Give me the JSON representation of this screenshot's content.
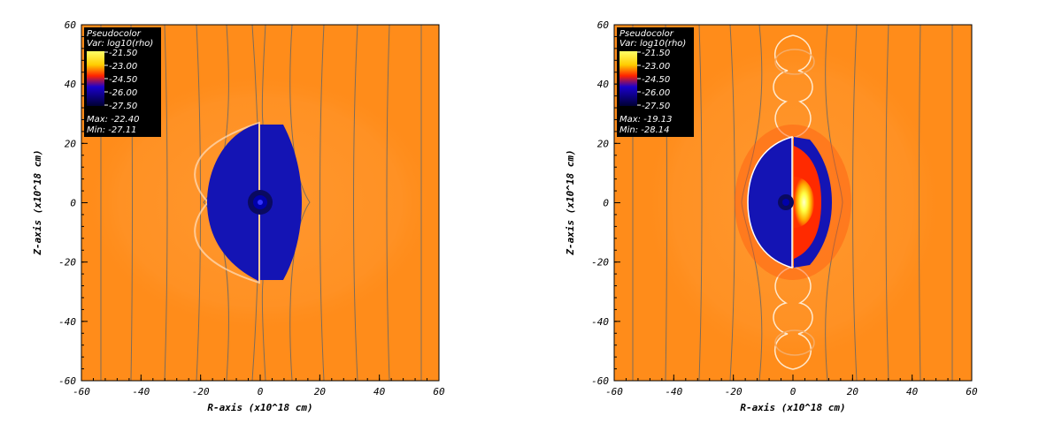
{
  "chart_data": [
    {
      "type": "heatmap",
      "xlabel": "R-axis (x10^18 cm)",
      "ylabel": "Z-axis (x10^18 cm)",
      "xlim": [
        -60,
        60
      ],
      "ylim": [
        -60,
        60
      ],
      "x_ticks": [
        -60,
        -40,
        -20,
        0,
        20,
        40,
        60
      ],
      "y_ticks": [
        -60,
        -40,
        -20,
        0,
        20,
        40,
        60
      ],
      "legend": {
        "placement": "top-left",
        "title": "Pseudocolor",
        "var": "Var: log10(rho)",
        "levels": [
          "-21.50",
          "-23.00",
          "-24.50",
          "-26.00",
          "-27.50"
        ],
        "max": "Max: -22.40",
        "min": "Min: -27.11"
      },
      "colormap": [
        "#ffff66",
        "#ffcc00",
        "#ff2200",
        "#0000cc",
        "#000033"
      ],
      "background_color": "#ff8c1a",
      "features": {
        "cavity_color": "#1414b4",
        "field_line_color": "#555555"
      }
    },
    {
      "type": "heatmap",
      "xlabel": "R-axis (x10^18 cm)",
      "ylabel": "Z-axis (x10^18 cm)",
      "xlim": [
        -60,
        60
      ],
      "ylim": [
        -60,
        60
      ],
      "x_ticks": [
        -60,
        -40,
        -20,
        0,
        20,
        40,
        60
      ],
      "y_ticks": [
        -60,
        -40,
        -20,
        0,
        20,
        40,
        60
      ],
      "legend": {
        "placement": "top-left",
        "title": "Pseudocolor",
        "var": "Var: log10(rho)",
        "levels": [
          "-21.50",
          "-23.00",
          "-24.50",
          "-26.00",
          "-27.50"
        ],
        "max": "Max: -19.13",
        "min": "Min: -28.14"
      },
      "colormap": [
        "#ffff66",
        "#ffcc00",
        "#ff2200",
        "#0000cc",
        "#000033"
      ],
      "background_color": "#ff8c1a",
      "features": {
        "cavity_color": "#1414b4",
        "shocked_color": "#ff2a00",
        "core_color": "#ffff66",
        "field_line_color": "#555555"
      }
    }
  ]
}
